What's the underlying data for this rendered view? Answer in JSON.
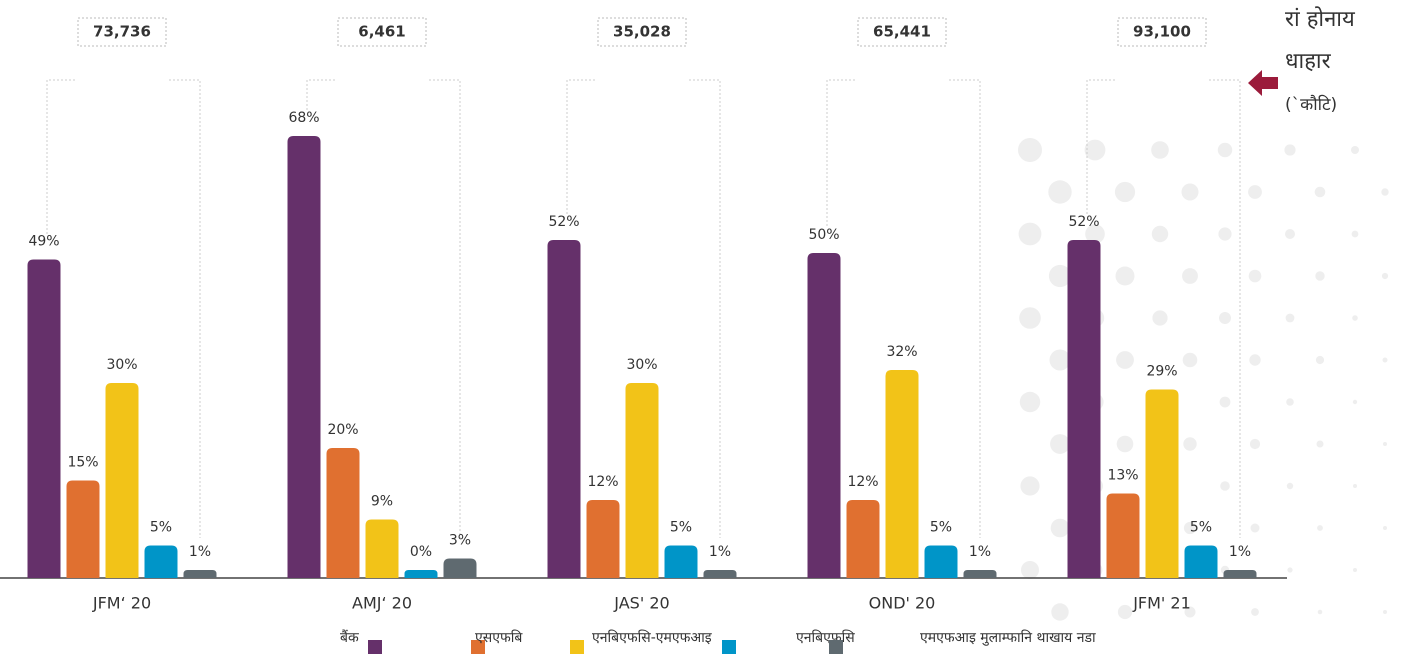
{
  "chart_data": {
    "type": "bar",
    "categories": [
      "JFM‘ 20",
      "AMJ‘ 20",
      "JAS' 20",
      "OND' 20",
      "JFM' 21"
    ],
    "totals": [
      {
        "value": 73736,
        "label": "73,736"
      },
      {
        "value": 6461,
        "label": "6,461"
      },
      {
        "value": 35028,
        "label": "35,028"
      },
      {
        "value": 65441,
        "label": "65,441"
      },
      {
        "value": 93100,
        "label": "93,100"
      }
    ],
    "series": [
      {
        "name": "बैंक",
        "color": "#65306a",
        "values": [
          49,
          68,
          52,
          50,
          52
        ],
        "value_labels": [
          "49%",
          "68%",
          "52%",
          "50%",
          "52%"
        ]
      },
      {
        "name": "एसएफबि",
        "color": "#e07030",
        "values": [
          15,
          20,
          12,
          12,
          13
        ],
        "value_labels": [
          "15%",
          "20%",
          "12%",
          "12%",
          "13%"
        ]
      },
      {
        "name": "एनबिएफसि-एमएफआइ",
        "color": "#f2c318",
        "values": [
          30,
          9,
          30,
          32,
          29
        ],
        "value_labels": [
          "30%",
          "9%",
          "30%",
          "32%",
          "29%"
        ]
      },
      {
        "name": "एनबिएफसि",
        "color": "#0095c8",
        "values": [
          5,
          0,
          5,
          5,
          5
        ],
        "value_labels": [
          "5%",
          "0%",
          "5%",
          "5%",
          "5%"
        ]
      },
      {
        "name": "एमएफआइ मुलाम्फानि थाखाय नडा",
        "color": "#5f6a70",
        "values": [
          1,
          3,
          1,
          1,
          1
        ],
        "value_labels": [
          "1%",
          "3%",
          "1%",
          "1%",
          "1%"
        ]
      }
    ],
    "annotation": [
      "रां होनाय",
      "धाहार",
      "(`कौटि)"
    ],
    "annotation_color": "#9b1b3b"
  }
}
